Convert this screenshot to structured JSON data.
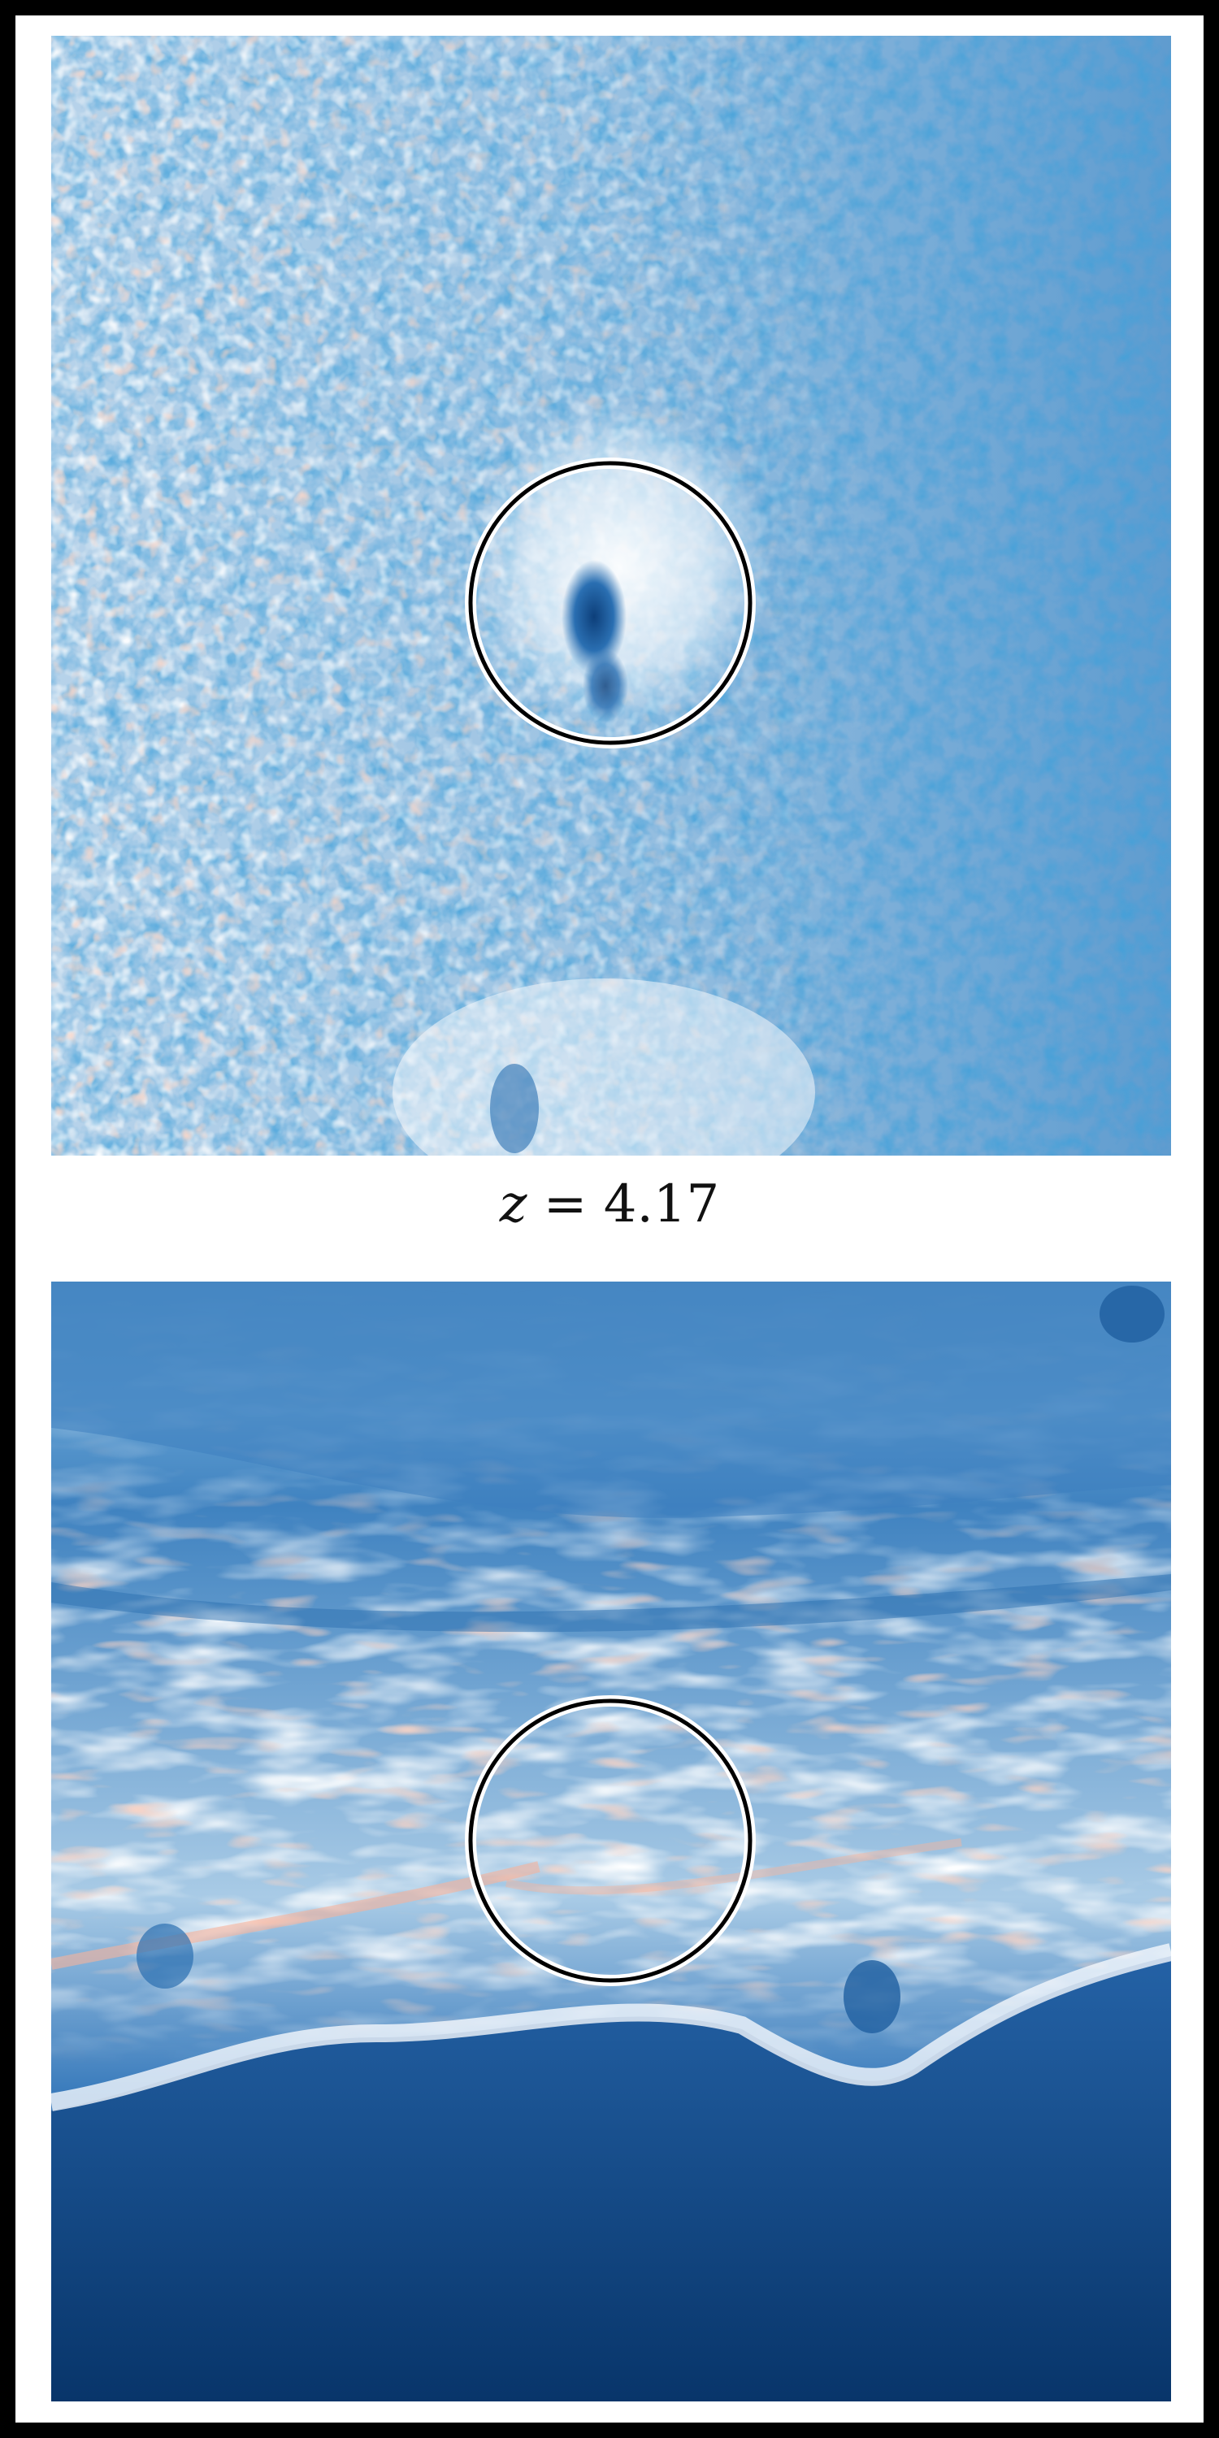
{
  "label": {
    "variable": "z",
    "equals": "=",
    "value": "4.17"
  },
  "colors": {
    "frame": "#000000",
    "background": "#ffffff",
    "deep_blue": "#0c3a70",
    "mid_blue": "#2b6fb0",
    "light_blue": "#6ba6d4",
    "pale_blue": "#c6dcee",
    "white": "#f6f8fb",
    "salmon": "#f7b49c",
    "circle": "#000000"
  },
  "panels": [
    {
      "name": "top-map",
      "circle": "aperture"
    },
    {
      "name": "bottom-map",
      "circle": "aperture"
    }
  ]
}
